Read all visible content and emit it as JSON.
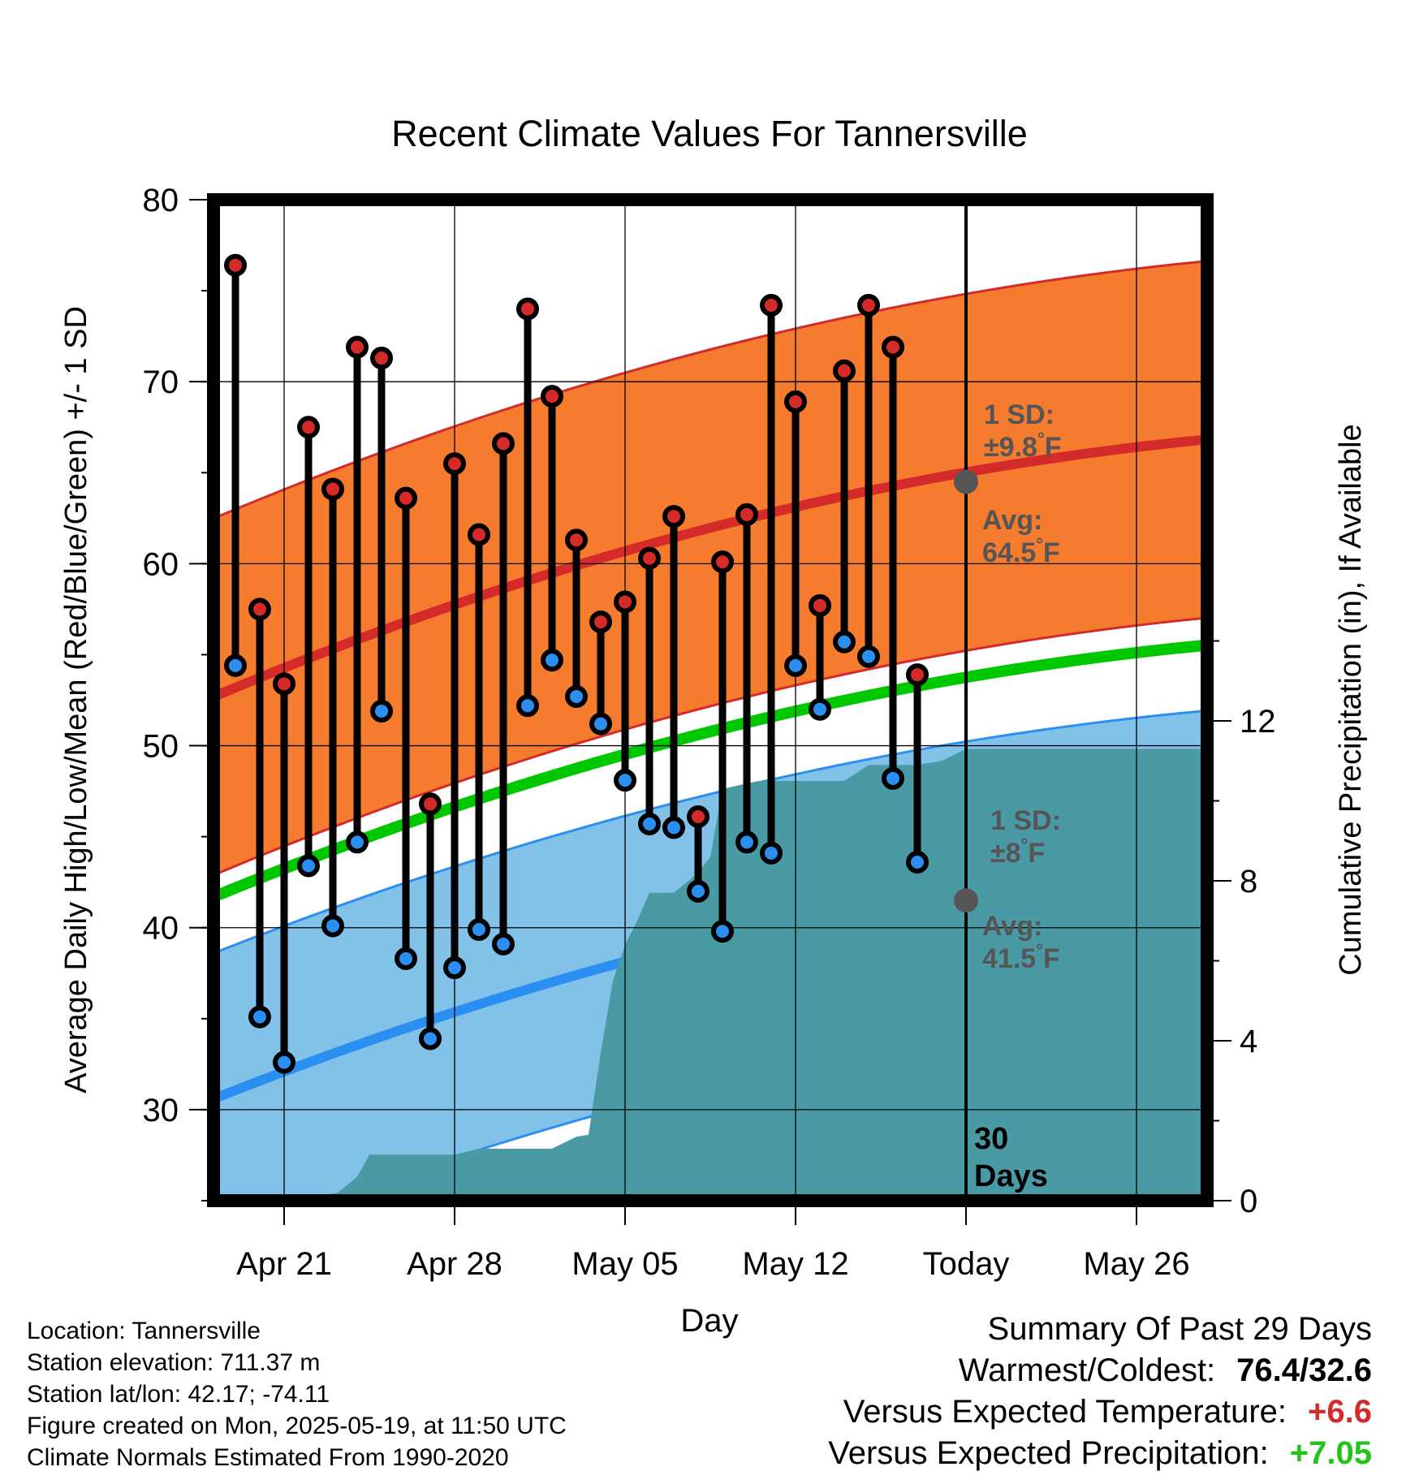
{
  "chart_data": {
    "type": "line",
    "title": "Recent Climate Values For Tannersville",
    "xlabel": "Day",
    "ylabel_left": "Average Daily High/Low/Mean (Red/Blue/Green) +/- 1 SD",
    "ylabel_right": "Cumulative Precipitation (in), If Available",
    "ylim_left": [
      25,
      80
    ],
    "ylim_right": [
      0,
      24
    ],
    "y_ticks_left": [
      30,
      40,
      50,
      60,
      70,
      80
    ],
    "y_ticks_right": [
      0,
      4,
      8,
      12
    ],
    "x_ticks": [
      {
        "day": 0,
        "label": "Apr 21"
      },
      {
        "day": 7,
        "label": "Apr 28"
      },
      {
        "day": 14,
        "label": "May 05"
      },
      {
        "day": 21,
        "label": "May 12"
      },
      {
        "day": 28,
        "label": "Today"
      },
      {
        "day": 35,
        "label": "May 26"
      }
    ],
    "x_start_day_offset": -2.7,
    "x_end_day_offset": 37.7,
    "today_day_offset": 28,
    "today_label": "30\nDays",
    "daily_highs": [
      76.4,
      57.5,
      53.4,
      67.5,
      64.1,
      71.9,
      71.3,
      63.6,
      46.8,
      65.5,
      61.6,
      66.6,
      74.0,
      69.2,
      61.3,
      56.8,
      57.9,
      60.3,
      62.6,
      46.1,
      60.1,
      62.7,
      74.2,
      68.9,
      57.7,
      70.6,
      74.2,
      71.9,
      53.9
    ],
    "daily_lows": [
      54.4,
      35.1,
      32.6,
      43.4,
      40.1,
      44.7,
      51.9,
      38.3,
      33.9,
      37.8,
      39.9,
      39.1,
      52.2,
      54.7,
      52.7,
      51.2,
      48.1,
      45.7,
      45.5,
      42.0,
      39.8,
      44.7,
      44.1,
      54.4,
      52.0,
      55.7,
      54.9,
      48.2,
      43.6
    ],
    "first_obs_day_offset": -2,
    "normal_high": {
      "start": 52.8,
      "end": 66.8,
      "sd": 9.8,
      "label_sd": "1 SD:",
      "label_sd_val": "±9.8°F",
      "label_avg": "Avg:",
      "label_avg_val": "64.5°F",
      "today_value": 64.5
    },
    "normal_low": {
      "start": 30.7,
      "end": 43.9,
      "sd": 8,
      "label_sd": "1 SD:",
      "label_sd_val": "±8°F",
      "label_avg": "Avg:",
      "label_avg_val": "41.5°F",
      "today_value": 41.5
    },
    "normal_mean": {
      "start": 41.8,
      "end": 55.5
    },
    "cumulative_precip": [
      [
        -2.7,
        0
      ],
      [
        0,
        0
      ],
      [
        1.5,
        0.12
      ],
      [
        2.2,
        0.2
      ],
      [
        3,
        0.6
      ],
      [
        3.5,
        1.15
      ],
      [
        7,
        1.15
      ],
      [
        8,
        1.3
      ],
      [
        11,
        1.3
      ],
      [
        12,
        1.6
      ],
      [
        12.5,
        1.65
      ],
      [
        13,
        3.7
      ],
      [
        13.5,
        5.5
      ],
      [
        14,
        6.4
      ],
      [
        14.5,
        7.0
      ],
      [
        15,
        7.7
      ],
      [
        16,
        7.7
      ],
      [
        17,
        8.2
      ],
      [
        17.5,
        8.6
      ],
      [
        18,
        10.3
      ],
      [
        19.5,
        10.5
      ],
      [
        23,
        10.5
      ],
      [
        24,
        10.9
      ],
      [
        26,
        10.9
      ],
      [
        27,
        11.0
      ],
      [
        28,
        11.3
      ],
      [
        37.7,
        11.3
      ]
    ],
    "colors": {
      "high_sd_band": "#f57b2e",
      "high_line": "#d42a2a",
      "low_sd_band": "#82c1e8",
      "low_line": "#2a8ff0",
      "mean_line": "#00c800",
      "precip": "#4a9aa5",
      "high_point": "#d42a2a",
      "low_point": "#2a8ff0",
      "annotation": "#555555"
    },
    "grid": true
  },
  "meta": {
    "location": "Location: Tannersville",
    "elevation": "Station elevation: 711.37 m",
    "latlon": "Station lat/lon: 42.17; -74.11",
    "created": "Figure created on Mon, 2025-05-19, at 11:50 UTC",
    "normals": "Climate Normals Estimated From 1990-2020"
  },
  "summary": {
    "heading": "Summary Of Past 29 Days",
    "warm_cold_label": "Warmest/Coldest:",
    "warm_cold_value": "76.4/32.6",
    "temp_label": "Versus Expected Temperature:",
    "temp_value": "+6.6",
    "prcp_label": "Versus Expected Precipitation:",
    "prcp_value": "+7.05"
  }
}
